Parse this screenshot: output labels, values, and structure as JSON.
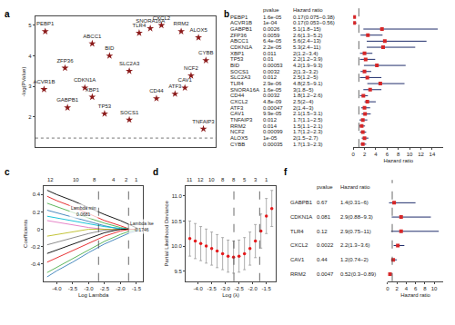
{
  "chart_data": [
    {
      "panel": "a",
      "type": "scatter",
      "y_label": "-log(PValue)",
      "tick_labels": "y",
      "labels": [
        "PEBP1",
        "ABCC1",
        "CXCL2",
        "SNORA16A",
        "TLR4",
        "RRM2",
        "ALOX5",
        "BID",
        "CYBB",
        "ZFP36",
        "SLC2A3",
        "NCF2",
        "ACVR1B",
        "CDKN1A",
        "XBP1",
        "CAV1",
        "ATF3",
        "CD44",
        "GABPB1",
        "TP53",
        "SOCS1",
        "TNFAIP3"
      ],
      "x": [
        0.8,
        4.6,
        10.2,
        9.3,
        8.4,
        11.8,
        13.2,
        6.0,
        13.8,
        2.4,
        7.6,
        12.6,
        0.7,
        4.0,
        4.6,
        12.1,
        11.3,
        9.8,
        2.6,
        5.6,
        7.6,
        13.6
      ],
      "values": [
        4.8,
        4.4,
        5.0,
        4.9,
        4.75,
        4.8,
        4.6,
        4.0,
        3.85,
        3.6,
        3.5,
        3.35,
        2.9,
        2.95,
        2.65,
        2.95,
        2.75,
        2.6,
        2.3,
        2.1,
        1.9,
        1.6
      ],
      "color": "#8b1a1a",
      "marker": "star",
      "xlim": [
        0,
        14.6
      ],
      "ylim": [
        1,
        5.3
      ],
      "yticks": [
        2,
        3,
        4,
        5
      ],
      "hline": 1.3
    },
    {
      "panel": "b",
      "type": "forest",
      "header_pvalue": "pvalue",
      "header_hr": "Hazard ratio",
      "x_label": "Hazard ratio",
      "categories": [
        "PEBP1",
        "ACVR1B",
        "GABPB1",
        "ZFP36",
        "ABCC1",
        "CDKN1A",
        "XBP1",
        "TP53",
        "BID",
        "SOCS1",
        "SLC2A3",
        "TLR4",
        "SNORA16A",
        "CD44",
        "CXCL2",
        "ATF3",
        "CAV1",
        "TNFAIP3",
        "RRM2",
        "NCF2",
        "ALOX5",
        "CYBB"
      ],
      "pvalue_labels": [
        "1.6e-05",
        "1e-04",
        "0.0026",
        "0.0059",
        "6.4e-05",
        "2.2e-05",
        "0.011",
        "0.01",
        "0.00053",
        "0.0032",
        "0.012",
        "2.9e-06",
        "1.6e-05",
        "0.0032",
        "4.8e-09",
        "0.00047",
        "9.9e-05",
        "0.012",
        "0.014",
        "0.00099",
        "1e-05",
        "0.00035"
      ],
      "values": [
        0.17,
        0.17,
        5.1,
        2.6,
        5.6,
        5.3,
        2,
        2.2,
        4.2,
        2,
        2.5,
        4.8,
        3,
        1.8,
        2.5,
        2,
        2.1,
        1.7,
        1.5,
        1.7,
        2,
        1.7
      ],
      "lower": [
        0.075,
        0.053,
        1.8,
        1.3,
        2.4,
        2.4,
        1.2,
        1.2,
        1.9,
        1.3,
        1.2,
        2.5,
        1.8,
        1.2,
        2,
        1.4,
        1.5,
        1.1,
        1.1,
        1.2,
        1.5,
        1.3
      ],
      "upper": [
        0.38,
        0.56,
        15,
        5.2,
        13,
        11,
        3.4,
        3.9,
        9.3,
        3.2,
        5,
        9.1,
        5,
        2.6,
        4,
        3,
        3.1,
        2.5,
        2.1,
        2.3,
        2.7,
        2.3
      ],
      "value_labels": [
        "0.17(0.075−0.38)",
        "0.17(0.053−0.56)",
        "5.1(1.8−15)",
        "2.6(1.3−5.2)",
        "5.6(2.4−13)",
        "5.3(2.4−11)",
        "2(1.2−3.4)",
        "2.2(1.2−3.9)",
        "4.2(1.9−9.3)",
        "2(1.3−3.2)",
        "2.5(1.2−5)",
        "4.8(2.5−9.1)",
        "3(1.8−5)",
        "1.8(1.2−2.6)",
        "2.5(2−4)",
        "2(1.4−3)",
        "2.1(1.5−3.1)",
        "1.7(1.1−2.5)",
        "1.5(1.1−2.1)",
        "1.7(1.2−2.3)",
        "2(1.5−2.7)",
        "1.7(1.3−2.3)"
      ],
      "color": "#d62728",
      "line_color": "#1f2d6b",
      "reference": 1,
      "xlim": [
        0,
        16
      ],
      "xticks": [
        0,
        2,
        4,
        6,
        8,
        10,
        12,
        14
      ]
    },
    {
      "panel": "c",
      "type": "line",
      "x_label": "Log Lambda",
      "y_label": "Coefficients",
      "x": [
        -4.3,
        -4.0,
        -3.5,
        -3.0,
        -2.5,
        -2.0,
        -1.7,
        -1.4
      ],
      "series": [
        {
          "color": "#000000",
          "values": [
            0.45,
            0.4,
            0.33,
            0.25,
            0.17,
            0.1,
            0.05,
            0
          ]
        },
        {
          "color": "#e41a1c",
          "values": [
            0.38,
            0.33,
            0.26,
            0.18,
            0.1,
            0.04,
            0,
            0
          ]
        },
        {
          "color": "#4daf4a",
          "values": [
            0.3,
            0.26,
            0.2,
            0.13,
            0.07,
            0.02,
            0,
            0
          ]
        },
        {
          "color": "#377eb8",
          "values": [
            0.22,
            0.19,
            0.14,
            0.09,
            0.04,
            0,
            0,
            0
          ]
        },
        {
          "color": "#00bcd4",
          "values": [
            0.15,
            0.13,
            0.1,
            0.06,
            0.03,
            0.01,
            0,
            0
          ]
        },
        {
          "color": "#e377c2",
          "values": [
            0.1,
            0.08,
            0.05,
            0.02,
            0,
            0,
            0,
            0
          ]
        },
        {
          "color": "#bcbd22",
          "values": [
            -0.08,
            -0.06,
            -0.03,
            0,
            0,
            0,
            0,
            0
          ]
        },
        {
          "color": "#7f7f7f",
          "values": [
            -0.18,
            -0.15,
            -0.1,
            -0.05,
            -0.01,
            0,
            0,
            0
          ]
        },
        {
          "color": "#000000",
          "values": [
            -0.28,
            -0.24,
            -0.17,
            -0.1,
            -0.04,
            0,
            0,
            0
          ]
        },
        {
          "color": "#e41a1c",
          "values": [
            -0.38,
            -0.33,
            -0.25,
            -0.16,
            -0.08,
            -0.02,
            0,
            0
          ]
        },
        {
          "color": "#4daf4a",
          "values": [
            -0.5,
            -0.44,
            -0.34,
            -0.24,
            -0.14,
            -0.06,
            -0.02,
            0
          ]
        },
        {
          "color": "#377eb8",
          "values": [
            -0.55,
            -0.48,
            -0.38,
            -0.27,
            -0.17,
            -0.09,
            -0.04,
            -0.01
          ]
        }
      ],
      "xlim": [
        -4.4,
        -1.3
      ],
      "xticks": [
        {
          "value": -4,
          "label": "-4.0"
        },
        -3.5,
        {
          "value": -3,
          "label": "-3.0"
        },
        -2.5,
        {
          "value": -2,
          "label": "-2.0"
        },
        -1.5
      ],
      "ylim": [
        -0.6,
        0.5
      ],
      "yticks": [
        -0.4,
        -0.2,
        0,
        0.2,
        0.4
      ],
      "top_ticks": [
        {
          "value": -4.2,
          "label": "12"
        },
        {
          "value": -3.4,
          "label": "10"
        },
        {
          "value": -2.8,
          "label": "8"
        },
        {
          "value": -2.2,
          "label": "4"
        },
        {
          "value": -1.8,
          "label": "2"
        },
        {
          "value": -1.5,
          "label": "1"
        }
      ],
      "vlines": [
        -2.687,
        -1.745
      ],
      "vline_labels": [
        "Lambda min\n0.0681",
        "Lambda lse\n0.1746"
      ]
    },
    {
      "panel": "d",
      "type": "errorbar",
      "x_label": "Log (λ)",
      "y_label": "Partial Likelihood Deviance",
      "x": [
        -4.3,
        -4.1,
        -3.9,
        -3.7,
        -3.5,
        -3.3,
        -3.1,
        -2.9,
        -2.7,
        -2.5,
        -2.3,
        -2.1,
        -1.9,
        -1.7,
        -1.5,
        -1.3
      ],
      "values": [
        10.15,
        10.1,
        10.05,
        10.0,
        9.95,
        9.9,
        9.85,
        9.8,
        9.78,
        9.8,
        9.85,
        9.95,
        10.1,
        10.3,
        10.6,
        10.75
      ],
      "errors": [
        0.35,
        0.35,
        0.34,
        0.34,
        0.33,
        0.33,
        0.32,
        0.32,
        0.32,
        0.32,
        0.32,
        0.33,
        0.33,
        0.34,
        0.35,
        0.36
      ],
      "color": "#e41a1c",
      "error_color": "#999999",
      "xlim": [
        -4.45,
        -1.15
      ],
      "xticks": [
        {
          "value": -4,
          "label": "-4.0"
        },
        -3.5,
        {
          "value": -3,
          "label": "-3.0"
        },
        -2.5,
        {
          "value": -2,
          "label": "-2.0"
        },
        -1.5
      ],
      "ylim": [
        9.3,
        11.2
      ],
      "yticks": [
        9.5,
        {
          "value": 10,
          "label": "10.0"
        },
        10.5,
        {
          "value": 11,
          "label": "11.0"
        }
      ],
      "top_ticks": [
        {
          "value": -4.3,
          "label": "11"
        },
        {
          "value": -3.9,
          "label": "12"
        },
        {
          "value": -3.5,
          "label": "10"
        },
        {
          "value": -3.1,
          "label": "8"
        },
        {
          "value": -2.7,
          "label": "8"
        },
        {
          "value": -2.3,
          "label": "5"
        },
        {
          "value": -1.9,
          "label": "3"
        },
        {
          "value": -1.5,
          "label": "1"
        }
      ],
      "vlines": [
        -2.687,
        -1.745
      ]
    },
    {
      "panel": "f",
      "type": "forest",
      "header_pvalue": "pvalue",
      "header_hr": "Hazard ratio",
      "x_label": "Hazard ratio",
      "categories": [
        "GABPB1",
        "CDKN1A",
        "TLR4",
        "CXCL2",
        "CAV1",
        "RRM2"
      ],
      "pvalue_labels": [
        "0.67",
        "0.081",
        "0.12",
        "0.0022",
        "0.44",
        "0.0047"
      ],
      "values": [
        1.4,
        2.9,
        2.9,
        2.2,
        1.2,
        0.52
      ],
      "lower": [
        0.31,
        0.88,
        0.75,
        1.3,
        0.74,
        0.3
      ],
      "upper": [
        6,
        9.3,
        11,
        3.6,
        2,
        0.89
      ],
      "value_labels": [
        "1.4(0.31−6)",
        "2.9(0.88−9.3)",
        "2.9(0.75−11)",
        "2.2(1.3−3.6)",
        "1.2(0.74−2)",
        "0.52(0.3−0.89)"
      ],
      "color": "#d62728",
      "line_color": "#1f2d6b",
      "reference": 1,
      "xlim": [
        0,
        12
      ],
      "xticks": [
        0,
        2,
        4,
        6,
        8,
        10
      ]
    }
  ]
}
